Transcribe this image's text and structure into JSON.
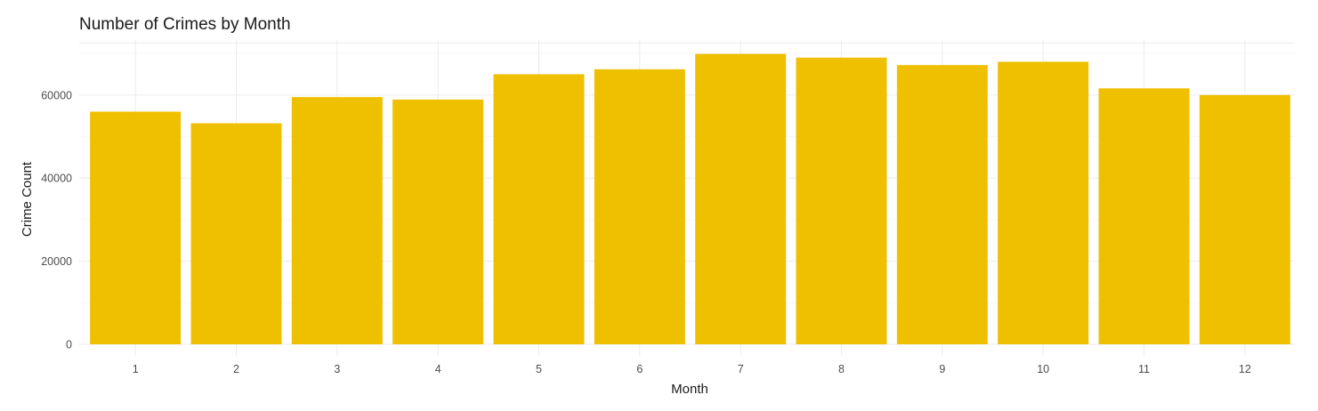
{
  "chart_data": {
    "type": "bar",
    "title": "Number of Crimes by Month",
    "xlabel": "Month",
    "ylabel": "Crime Count",
    "categories": [
      "1",
      "2",
      "3",
      "4",
      "5",
      "6",
      "7",
      "8",
      "9",
      "10",
      "11",
      "12"
    ],
    "values": [
      56000,
      53200,
      59500,
      58900,
      65000,
      66200,
      69900,
      69000,
      67200,
      68000,
      61600,
      60000
    ],
    "ylim": [
      0,
      70000
    ],
    "yticks": [
      0,
      20000,
      40000,
      60000
    ],
    "ytick_labels": [
      "0",
      "20000",
      "40000",
      "60000"
    ],
    "grid": true,
    "legend": "none",
    "bar_color": "#EFC000",
    "background": "#ffffff"
  }
}
